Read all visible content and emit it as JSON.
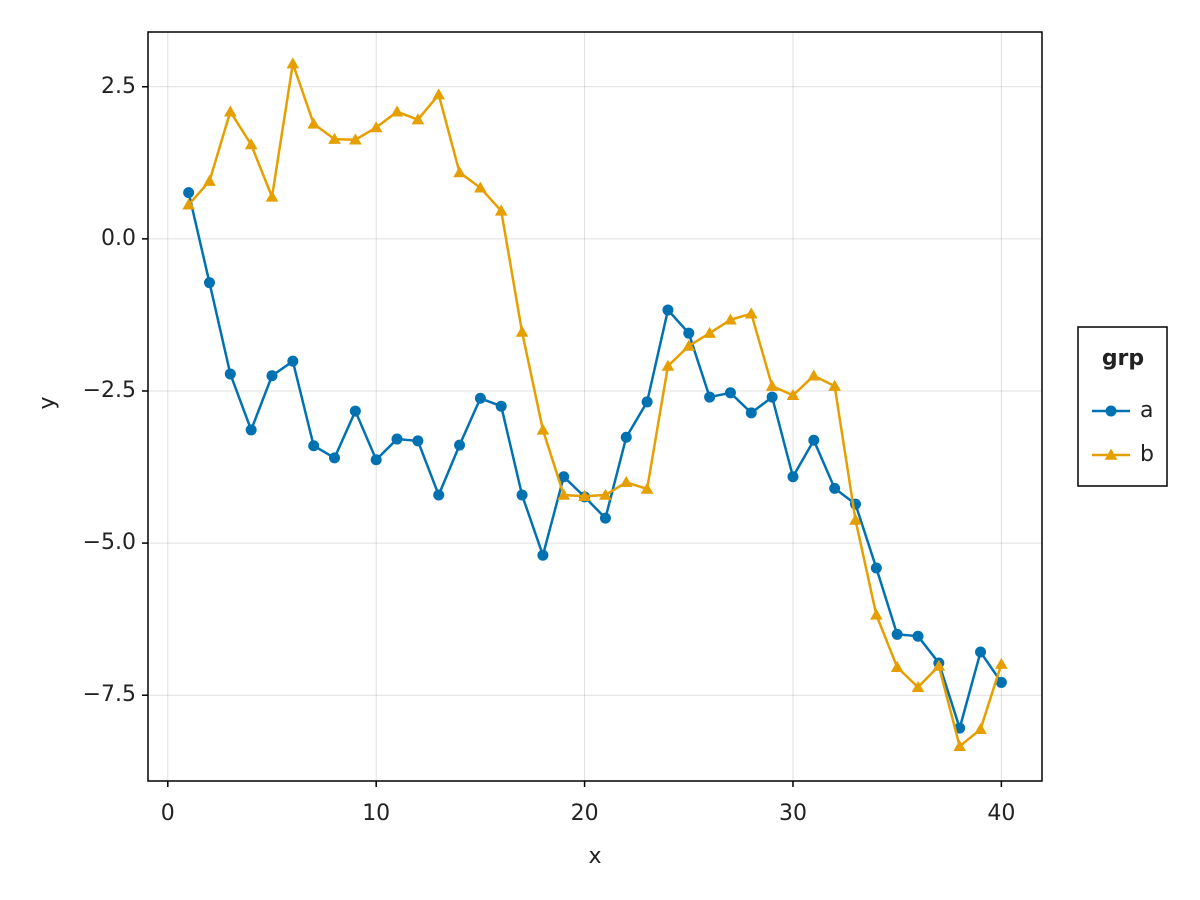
{
  "chart_data": {
    "type": "line",
    "x_label": "x",
    "y_label": "y",
    "legend_title": "grp",
    "legend_position": "right",
    "grid": true,
    "x": [
      1,
      2,
      3,
      4,
      5,
      6,
      7,
      8,
      9,
      10,
      11,
      12,
      13,
      14,
      15,
      16,
      17,
      18,
      19,
      20,
      21,
      22,
      23,
      24,
      25,
      26,
      27,
      28,
      29,
      30,
      31,
      32,
      33,
      34,
      35,
      36,
      37,
      38,
      39,
      40
    ],
    "series": [
      {
        "name": "a",
        "color": "#0072b2",
        "marker": "circle",
        "values": [
          0.76,
          -0.72,
          -2.22,
          -3.14,
          -2.25,
          -2.01,
          -3.4,
          -3.6,
          -2.83,
          -3.63,
          -3.29,
          -3.32,
          -4.21,
          -3.39,
          -2.62,
          -2.75,
          -4.21,
          -5.2,
          -3.91,
          -4.24,
          -4.59,
          -3.26,
          -2.68,
          -1.17,
          -1.55,
          -2.6,
          -2.53,
          -2.86,
          -2.6,
          -3.91,
          -3.31,
          -4.1,
          -4.36,
          -5.41,
          -6.5,
          -6.53,
          -6.97,
          -8.04,
          -6.79,
          -7.29
        ]
      },
      {
        "name": "b",
        "color": "#e69f00",
        "marker": "triangle",
        "values": [
          0.56,
          0.95,
          2.09,
          1.55,
          0.69,
          2.88,
          1.89,
          1.64,
          1.63,
          1.83,
          2.09,
          1.96,
          2.37,
          1.09,
          0.84,
          0.46,
          -1.53,
          -3.14,
          -4.21,
          -4.23,
          -4.21,
          -4.0,
          -4.11,
          -2.09,
          -1.76,
          -1.55,
          -1.33,
          -1.23,
          -2.42,
          -2.57,
          -2.25,
          -2.42,
          -4.62,
          -6.18,
          -7.04,
          -7.37,
          -7.02,
          -8.34,
          -8.06,
          -6.99
        ]
      }
    ],
    "xlim": [
      -0.95,
      41.95
    ],
    "xticks": [
      0,
      10,
      20,
      30,
      40
    ],
    "ylim": [
      -8.91,
      3.4
    ],
    "yticks": [
      {
        "value": -7.5,
        "label": "−7.5"
      },
      {
        "value": -5,
        "label": "−5.0"
      },
      {
        "value": -2.5,
        "label": "−2.5"
      },
      {
        "value": 0,
        "label": "0.0"
      },
      2.5
    ]
  }
}
